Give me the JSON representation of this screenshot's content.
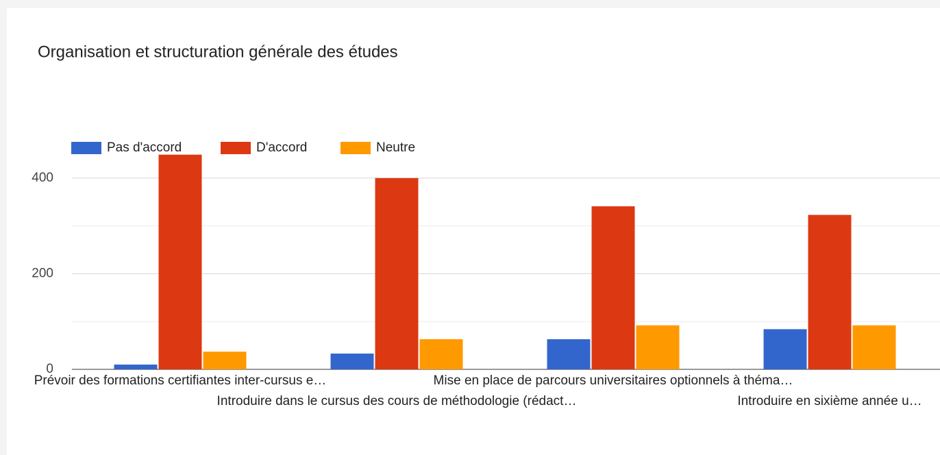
{
  "chart_data": {
    "type": "bar",
    "title": "Organisation et structuration générale des études",
    "categories": [
      "Prévoir des formations certifiantes inter-cursus e…",
      "Introduire dans le cursus des cours de méthodologie (rédact…",
      "Mise en place de parcours universitaires optionnels à théma…",
      "Introduire en sixième année u…"
    ],
    "series": [
      {
        "name": "Pas d'accord",
        "color": "#3366cc",
        "values": [
          10,
          33,
          63,
          84
        ]
      },
      {
        "name": "D'accord",
        "color": "#dc3912",
        "values": [
          449,
          400,
          341,
          323
        ]
      },
      {
        "name": "Neutre",
        "color": "#ff9900",
        "values": [
          37,
          63,
          92,
          92
        ]
      }
    ],
    "ylim": [
      0,
      450
    ],
    "yticks": [
      0,
      200,
      400
    ],
    "minor_yticks": [
      100,
      300
    ],
    "grid": true,
    "legend": "top"
  }
}
